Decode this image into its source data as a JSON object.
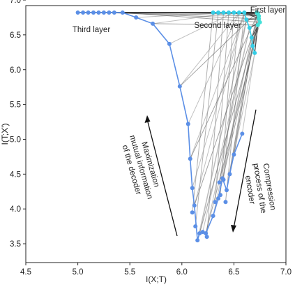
{
  "chart_data": {
    "type": "line",
    "xlabel": "I(X;T)",
    "ylabel": "I(T;X')",
    "xlim": [
      4.5,
      7.0
    ],
    "ylim": [
      3.23,
      6.92
    ],
    "xticks": [
      "4.5",
      "5.0",
      "5.5",
      "6.0",
      "6.5",
      "7.0"
    ],
    "yticks": [
      "3.5",
      "4.0",
      "4.5",
      "5.0",
      "5.5",
      "6.0",
      "6.5",
      "7.0"
    ],
    "grid": false,
    "annotations": {
      "first_layer": "First layer",
      "second_layer": "Second layer",
      "third_layer": "Third layer",
      "decoder_arrow": [
        "Maximization",
        "mutual information",
        "of the decoder"
      ],
      "encoder_arrow": [
        "Compression",
        "process of the",
        "encoder"
      ]
    },
    "series": [
      {
        "role": "third-layer",
        "color": "#5b8fe6",
        "x": [
          5.0,
          5.05,
          5.1,
          5.15,
          5.2,
          5.25,
          5.3,
          5.35,
          5.43,
          5.56,
          5.72,
          5.88,
          5.98,
          6.06,
          6.08,
          6.1,
          6.12,
          6.15,
          6.17,
          6.2,
          6.23,
          6.3,
          6.35,
          6.39,
          6.43,
          6.46,
          6.5,
          6.58
        ],
        "y": [
          6.82,
          6.82,
          6.82,
          6.82,
          6.82,
          6.82,
          6.82,
          6.82,
          6.82,
          6.75,
          6.66,
          6.37,
          5.76,
          5.22,
          4.72,
          4.3,
          4.05,
          3.55,
          3.65,
          3.67,
          3.65,
          3.9,
          4.15,
          4.44,
          4.27,
          4.5,
          4.78,
          5.08
        ]
      },
      {
        "role": "second-layer",
        "color": "#35cde6",
        "x": [
          6.3,
          6.35,
          6.4,
          6.45,
          6.5,
          6.55,
          6.6,
          6.62,
          6.65,
          6.67,
          6.68,
          6.7
        ],
        "y": [
          6.82,
          6.82,
          6.82,
          6.82,
          6.82,
          6.82,
          6.82,
          6.72,
          6.6,
          6.46,
          6.34,
          6.24
        ]
      },
      {
        "role": "first-layer",
        "color": "#42e0d8",
        "x": [
          6.72,
          6.73,
          6.74,
          6.74,
          6.75,
          6.73
        ],
        "y": [
          6.82,
          6.8,
          6.77,
          6.73,
          6.68,
          6.64
        ]
      }
    ],
    "extra_points": [
      {
        "x": 6.1,
        "y": 3.95
      },
      {
        "x": 6.13,
        "y": 3.75
      },
      {
        "x": 6.24,
        "y": 3.6
      },
      {
        "x": 6.32,
        "y": 4.1
      },
      {
        "x": 6.37,
        "y": 4.2
      },
      {
        "x": 6.4,
        "y": 4.42
      },
      {
        "x": 6.42,
        "y": 4.1
      },
      {
        "x": 6.36,
        "y": 4.38
      }
    ]
  }
}
